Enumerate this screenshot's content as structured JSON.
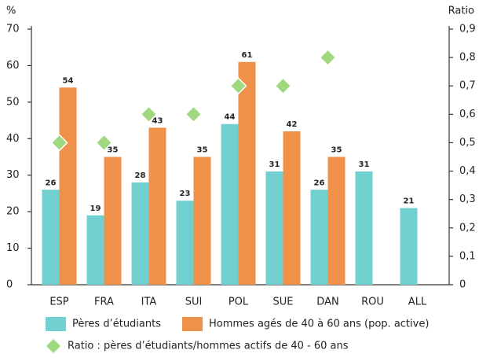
{
  "chart_data": {
    "type": "bar",
    "y_label": "%",
    "y2_label": "Ratio",
    "categories": [
      "ESP",
      "FRA",
      "ITA",
      "SUI",
      "POL",
      "SUE",
      "DAN",
      "ROU",
      "ALL"
    ],
    "series": [
      {
        "name": "Pères d’étudiants",
        "color": "#72cfd0",
        "values": [
          26,
          19,
          28,
          23,
          44,
          31,
          26,
          31,
          21
        ]
      },
      {
        "name": "Hommes agés de 40 à 60 ans (pop. active)",
        "color": "#f0914a",
        "values": [
          54,
          35,
          43,
          35,
          61,
          42,
          35,
          null,
          null
        ]
      },
      {
        "name": "Ratio : pères d’étudiants/hommes actifs de 40 - 60 ans",
        "color": "#9fd87f",
        "axis": "y2",
        "marker": "diamond",
        "values": [
          0.5,
          0.5,
          0.6,
          0.6,
          0.7,
          0.7,
          0.8,
          null,
          null
        ]
      }
    ],
    "ylim": [
      0,
      70
    ],
    "yticks": [
      0,
      10,
      20,
      30,
      40,
      50,
      60,
      70
    ],
    "y2lim": [
      0,
      0.9
    ],
    "y2ticks": [
      0,
      {
        "value": 0.1,
        "label": "0,1"
      },
      {
        "value": 0.2,
        "label": "0,2"
      },
      {
        "value": 0.3,
        "label": "0,3"
      },
      {
        "value": 0.4,
        "label": "0,4"
      },
      {
        "value": 0.5,
        "label": "0,5"
      },
      {
        "value": 0.6,
        "label": "0,6"
      },
      {
        "value": 0.7,
        "label": "0,7"
      },
      {
        "value": 0.8,
        "label": "0,8"
      },
      {
        "value": 0.9,
        "label": "0,9"
      }
    ],
    "data_labels": true,
    "grid": false
  }
}
